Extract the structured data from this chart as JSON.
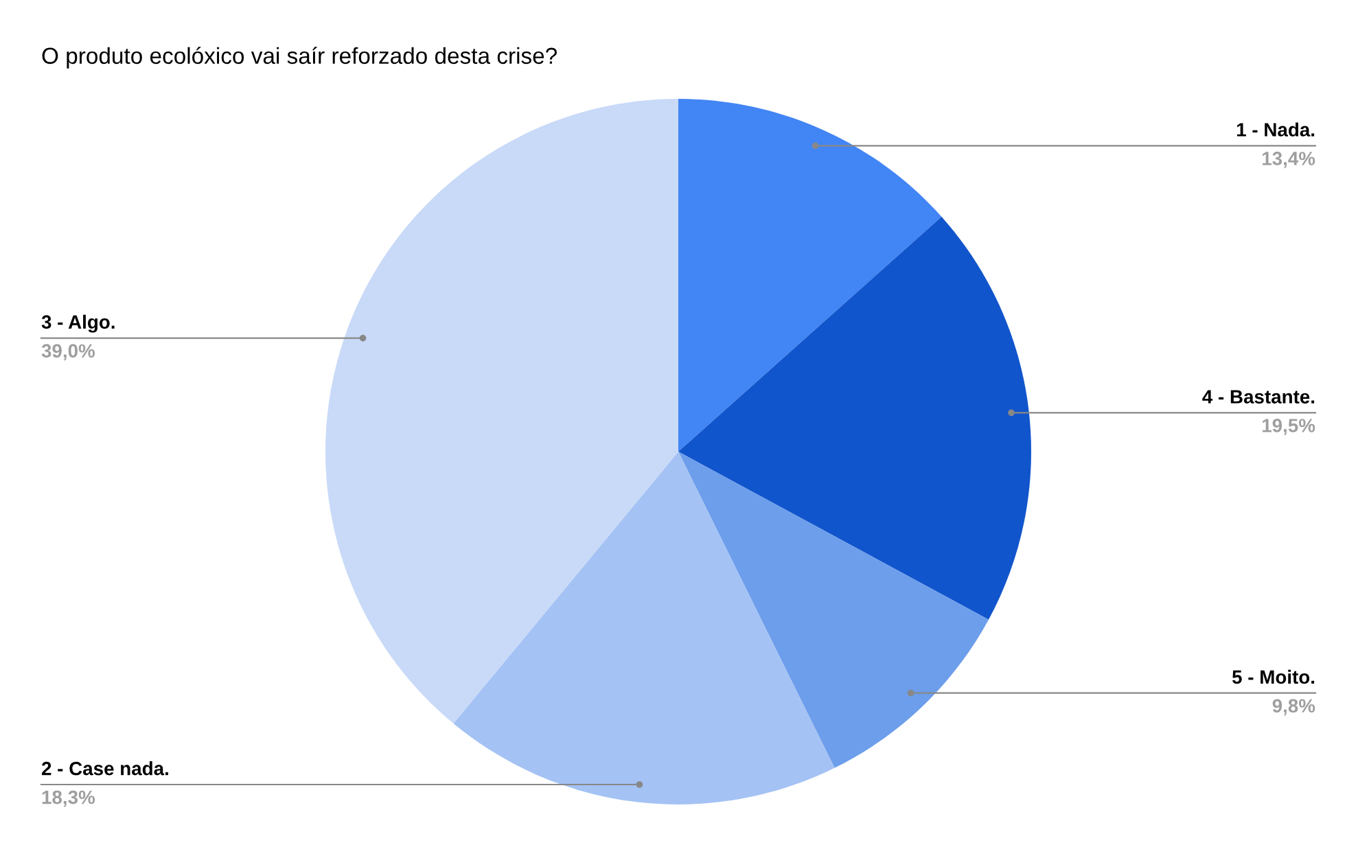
{
  "chart_data": {
    "type": "pie",
    "title": "O produto ecolóxico vai saír reforzado desta crise?",
    "categories": [
      "1 - Nada.",
      "4 - Bastante.",
      "5 - Moito.",
      "2 - Case nada.",
      "3 - Algo."
    ],
    "values": [
      13.4,
      19.5,
      9.8,
      18.3,
      39.0
    ],
    "colors": [
      "#4285f4",
      "#1155cc",
      "#6d9eeb",
      "#a4c2f4",
      "#c9daf8"
    ],
    "value_labels": [
      "13,4%",
      "19,5%",
      "9,8%",
      "18,3%",
      "39,0%"
    ],
    "legend": false
  }
}
